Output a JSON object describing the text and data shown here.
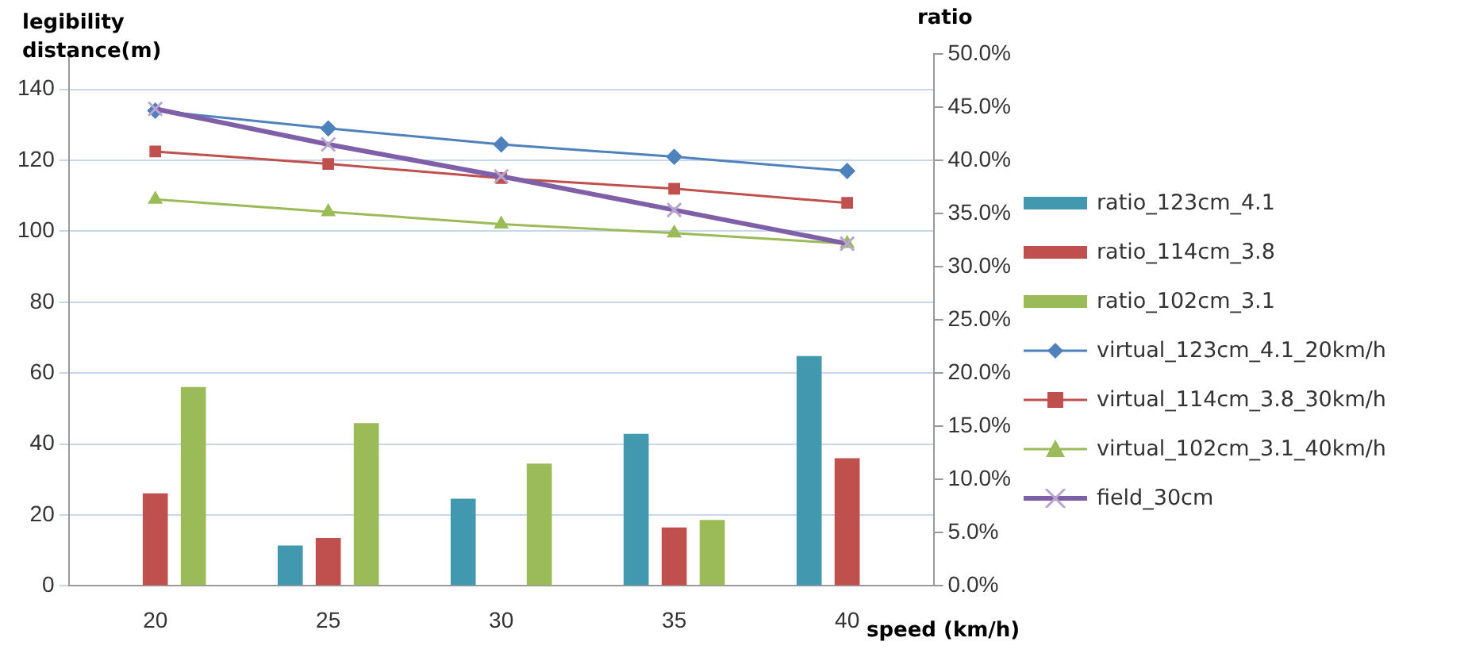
{
  "chart_data": {
    "type": "bar",
    "xlabel": "speed (km/h)",
    "ylabel": "legibility distance(m)",
    "y2label": "ratio",
    "categories": [
      "20",
      "25",
      "30",
      "35",
      "40"
    ],
    "series": [
      {
        "name": "ratio_123cm_4.1",
        "axis": "y2",
        "color": "#4198af",
        "values": [
          null,
          3.8,
          8.2,
          14.3,
          21.6
        ]
      },
      {
        "name": "ratio_114cm_3.8",
        "axis": "y2",
        "color": "#c0504d",
        "values": [
          8.7,
          4.5,
          null,
          5.5,
          12.0
        ]
      },
      {
        "name": "ratio_102cm_3.1",
        "axis": "y2",
        "color": "#9bbb59",
        "values": [
          18.7,
          15.3,
          11.5,
          6.2,
          null
        ]
      },
      {
        "name": "virtual_123cm_4.1_20km/h",
        "type": "line",
        "marker": "diamond",
        "color": "#4f81bd",
        "values": [
          134,
          129,
          124.5,
          121,
          117
        ]
      },
      {
        "name": "virtual_114cm_3.8_30km/h",
        "type": "line",
        "marker": "square",
        "color": "#c0504d",
        "values": [
          122.5,
          119,
          115,
          112,
          108
        ]
      },
      {
        "name": "virtual_102cm_3.1_40km/h",
        "type": "line",
        "marker": "triangle",
        "color": "#9bbb59",
        "values": [
          109,
          105.5,
          102,
          99.5,
          96.5
        ]
      },
      {
        "name": "field_30cm",
        "type": "line",
        "marker": "cross",
        "color": "#7f5fa8",
        "values": [
          134.5,
          124.5,
          115.5,
          106,
          96.5
        ]
      }
    ],
    "ylim": [
      0,
      150
    ],
    "yticks": [
      0,
      20,
      40,
      60,
      80,
      100,
      120,
      140
    ],
    "y2lim": [
      0,
      50
    ],
    "y2ticks": [
      {
        "value": 0,
        "label": "0.0%"
      },
      {
        "value": 5,
        "label": "5.0%"
      },
      {
        "value": 10,
        "label": "10.0%"
      },
      {
        "value": 15,
        "label": "15.0%"
      },
      {
        "value": 20,
        "label": "20.0%"
      },
      {
        "value": 25,
        "label": "25.0%"
      },
      {
        "value": 30,
        "label": "30.0%"
      },
      {
        "value": 35,
        "label": "35.0%"
      },
      {
        "value": 40,
        "label": "40.0%"
      },
      {
        "value": 45,
        "label": "45.0%"
      },
      {
        "value": 50,
        "label": "50.0%"
      }
    ],
    "grid": "y",
    "legend": "right"
  }
}
